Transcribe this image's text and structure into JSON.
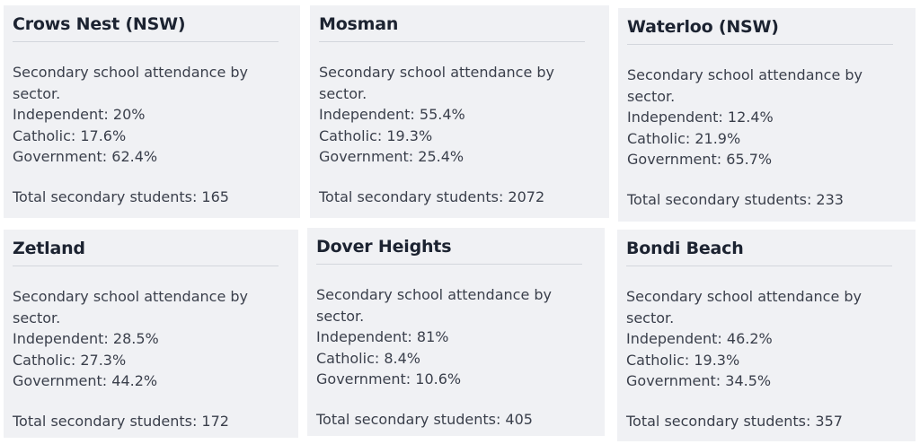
{
  "cards": [
    {
      "title": "Crows Nest (NSW)",
      "desc_line1": "Secondary school attendance by",
      "desc_line2": "sector.",
      "independent": "Independent: 20%",
      "catholic": "Catholic: 17.6%",
      "government": "Government: 62.4%",
      "total": "Total secondary students: 165"
    },
    {
      "title": "Mosman",
      "desc_line1": "Secondary school attendance by",
      "desc_line2": "sector.",
      "independent": "Independent: 55.4%",
      "catholic": "Catholic: 19.3%",
      "government": "Government: 25.4%",
      "total": "Total secondary students: 2072"
    },
    {
      "title": "Waterloo (NSW)",
      "desc_line1": "Secondary school attendance by",
      "desc_line2": "sector.",
      "independent": "Independent: 12.4%",
      "catholic": "Catholic: 21.9%",
      "government": "Government: 65.7%",
      "total": "Total secondary students: 233"
    },
    {
      "title": "Zetland",
      "desc_line1": "Secondary school attendance by",
      "desc_line2": "sector.",
      "independent": "Independent: 28.5%",
      "catholic": "Catholic: 27.3%",
      "government": "Government: 44.2%",
      "total": "Total secondary students: 172"
    },
    {
      "title": "Dover Heights",
      "desc_line1": "Secondary school attendance by",
      "desc_line2": "sector.",
      "independent": "Independent: 81%",
      "catholic": "Catholic: 8.4%",
      "government": "Government: 10.6%",
      "total": "Total secondary students: 405"
    },
    {
      "title": "Bondi Beach",
      "desc_line1": "Secondary school attendance by",
      "desc_line2": "sector.",
      "independent": "Independent: 46.2%",
      "catholic": "Catholic: 19.3%",
      "government": "Government: 34.5%",
      "total": "Total secondary students: 357"
    }
  ],
  "colors": {
    "card_background": "#f0f1f4",
    "title_text": "#1c2331",
    "body_text": "#3a3f4b",
    "divider": "#d3d6dc"
  }
}
